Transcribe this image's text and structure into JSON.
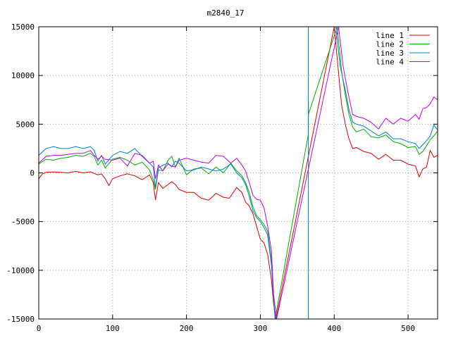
{
  "chart_data": {
    "type": "line",
    "title": "m2840_17",
    "xlabel": "",
    "ylabel": "",
    "xlim": [
      0,
      540
    ],
    "ylim": [
      -15000,
      15000
    ],
    "x_ticks": [
      0,
      100,
      200,
      300,
      400,
      500
    ],
    "y_ticks": [
      -15000,
      -10000,
      -5000,
      0,
      5000,
      10000,
      15000
    ],
    "x_tick_labels": [
      "0",
      "100",
      "200",
      "300",
      "400",
      "500"
    ],
    "y_tick_labels": [
      "-15000",
      "-10000",
      "-5000",
      "0",
      "5000",
      "10000",
      "15000"
    ],
    "grid": true,
    "legend_position": "top-right",
    "series": [
      {
        "name": "line 1",
        "color": "#e00000",
        "points": [
          [
            0,
            -600
          ],
          [
            5,
            -100
          ],
          [
            10,
            50
          ],
          [
            20,
            100
          ],
          [
            30,
            50
          ],
          [
            40,
            0
          ],
          [
            50,
            150
          ],
          [
            60,
            0
          ],
          [
            70,
            100
          ],
          [
            80,
            -200
          ],
          [
            85,
            -100
          ],
          [
            90,
            -600
          ],
          [
            95,
            -1300
          ],
          [
            100,
            -600
          ],
          [
            110,
            -300
          ],
          [
            120,
            -100
          ],
          [
            130,
            -300
          ],
          [
            140,
            -700
          ],
          [
            150,
            -200
          ],
          [
            155,
            -1000
          ],
          [
            158,
            -2800
          ],
          [
            162,
            -1000
          ],
          [
            168,
            -1600
          ],
          [
            175,
            -1200
          ],
          [
            180,
            -900
          ],
          [
            185,
            -1200
          ],
          [
            190,
            -1700
          ],
          [
            200,
            -2000
          ],
          [
            210,
            -2000
          ],
          [
            220,
            -2600
          ],
          [
            230,
            -2800
          ],
          [
            240,
            -2100
          ],
          [
            250,
            -2500
          ],
          [
            258,
            -2600
          ],
          [
            268,
            -1500
          ],
          [
            275,
            -2000
          ],
          [
            280,
            -3000
          ],
          [
            285,
            -3400
          ],
          [
            290,
            -4200
          ],
          [
            295,
            -5500
          ],
          [
            300,
            -6800
          ],
          [
            305,
            -7200
          ],
          [
            310,
            -8400
          ],
          [
            315,
            -11000
          ],
          [
            318,
            -13500
          ],
          [
            321,
            -15000
          ],
          [
            400,
            15000
          ],
          [
            405,
            11000
          ],
          [
            410,
            7000
          ],
          [
            415,
            5000
          ],
          [
            420,
            3500
          ],
          [
            425,
            2500
          ],
          [
            430,
            2600
          ],
          [
            440,
            2200
          ],
          [
            450,
            2000
          ],
          [
            460,
            1400
          ],
          [
            470,
            1900
          ],
          [
            480,
            1300
          ],
          [
            490,
            1300
          ],
          [
            500,
            900
          ],
          [
            510,
            700
          ],
          [
            515,
            -400
          ],
          [
            520,
            400
          ],
          [
            525,
            600
          ],
          [
            530,
            2300
          ],
          [
            535,
            1600
          ],
          [
            540,
            1800
          ]
        ]
      },
      {
        "name": "line 2",
        "color": "#00b000",
        "points": [
          [
            0,
            900
          ],
          [
            10,
            1400
          ],
          [
            20,
            1300
          ],
          [
            30,
            1500
          ],
          [
            40,
            1600
          ],
          [
            50,
            1800
          ],
          [
            60,
            1700
          ],
          [
            70,
            2000
          ],
          [
            75,
            1700
          ],
          [
            80,
            800
          ],
          [
            85,
            1300
          ],
          [
            90,
            500
          ],
          [
            100,
            1400
          ],
          [
            110,
            1600
          ],
          [
            120,
            1300
          ],
          [
            130,
            800
          ],
          [
            140,
            1100
          ],
          [
            150,
            300
          ],
          [
            155,
            -700
          ],
          [
            158,
            -1700
          ],
          [
            162,
            300
          ],
          [
            168,
            200
          ],
          [
            175,
            1300
          ],
          [
            180,
            1700
          ],
          [
            185,
            600
          ],
          [
            190,
            1500
          ],
          [
            200,
            -200
          ],
          [
            210,
            400
          ],
          [
            220,
            500
          ],
          [
            230,
            -100
          ],
          [
            240,
            600
          ],
          [
            250,
            0
          ],
          [
            260,
            1000
          ],
          [
            268,
            200
          ],
          [
            275,
            -300
          ],
          [
            280,
            -1000
          ],
          [
            285,
            -2000
          ],
          [
            290,
            -3500
          ],
          [
            295,
            -4400
          ],
          [
            300,
            -4800
          ],
          [
            305,
            -5300
          ],
          [
            310,
            -6000
          ],
          [
            315,
            -9000
          ],
          [
            318,
            -13000
          ],
          [
            320,
            -15000
          ],
          [
            365,
            4000
          ],
          [
            365,
            7300
          ],
          [
            365,
            6000
          ],
          [
            404,
            15000
          ],
          [
            410,
            10500
          ],
          [
            415,
            8000
          ],
          [
            420,
            6000
          ],
          [
            425,
            4700
          ],
          [
            430,
            4200
          ],
          [
            440,
            4500
          ],
          [
            450,
            3700
          ],
          [
            460,
            3600
          ],
          [
            470,
            3900
          ],
          [
            480,
            3200
          ],
          [
            490,
            3000
          ],
          [
            500,
            2600
          ],
          [
            510,
            2700
          ],
          [
            515,
            1900
          ],
          [
            520,
            2200
          ],
          [
            525,
            2800
          ],
          [
            530,
            3400
          ],
          [
            535,
            3800
          ],
          [
            540,
            4300
          ]
        ]
      },
      {
        "name": "line 3",
        "color": "#0080c0",
        "points": [
          [
            0,
            1800
          ],
          [
            10,
            2500
          ],
          [
            20,
            2700
          ],
          [
            30,
            2500
          ],
          [
            40,
            2500
          ],
          [
            50,
            2700
          ],
          [
            60,
            2500
          ],
          [
            70,
            2700
          ],
          [
            75,
            2300
          ],
          [
            80,
            1200
          ],
          [
            85,
            1800
          ],
          [
            90,
            900
          ],
          [
            100,
            1800
          ],
          [
            110,
            2200
          ],
          [
            120,
            2000
          ],
          [
            130,
            2500
          ],
          [
            140,
            1700
          ],
          [
            150,
            1000
          ],
          [
            155,
            600
          ],
          [
            158,
            -1500
          ],
          [
            162,
            500
          ],
          [
            168,
            800
          ],
          [
            175,
            1000
          ],
          [
            180,
            600
          ],
          [
            185,
            1200
          ],
          [
            190,
            1000
          ],
          [
            200,
            200
          ],
          [
            210,
            300
          ],
          [
            220,
            600
          ],
          [
            230,
            400
          ],
          [
            240,
            200
          ],
          [
            250,
            400
          ],
          [
            260,
            900
          ],
          [
            268,
            0
          ],
          [
            275,
            -500
          ],
          [
            280,
            -1200
          ],
          [
            285,
            -2400
          ],
          [
            290,
            -3900
          ],
          [
            295,
            -4600
          ],
          [
            300,
            -5000
          ],
          [
            305,
            -5600
          ],
          [
            310,
            -6400
          ],
          [
            315,
            -9500
          ],
          [
            318,
            -13000
          ],
          [
            320,
            -15000
          ],
          [
            365,
            -15000
          ],
          [
            365,
            15000
          ],
          [
            402,
            15000
          ],
          [
            408,
            11000
          ],
          [
            415,
            8500
          ],
          [
            420,
            6500
          ],
          [
            425,
            5200
          ],
          [
            430,
            5000
          ],
          [
            440,
            4800
          ],
          [
            450,
            4300
          ],
          [
            460,
            3800
          ],
          [
            470,
            4200
          ],
          [
            480,
            3500
          ],
          [
            490,
            3500
          ],
          [
            500,
            3200
          ],
          [
            510,
            3000
          ],
          [
            515,
            2500
          ],
          [
            520,
            2900
          ],
          [
            525,
            3300
          ],
          [
            530,
            3800
          ],
          [
            535,
            4900
          ],
          [
            540,
            4400
          ]
        ]
      },
      {
        "name": "line 4",
        "color": "#c000ff",
        "points": [
          [
            0,
            1000
          ],
          [
            10,
            1700
          ],
          [
            20,
            1800
          ],
          [
            30,
            1800
          ],
          [
            40,
            1900
          ],
          [
            50,
            2000
          ],
          [
            60,
            2000
          ],
          [
            70,
            2300
          ],
          [
            75,
            1800
          ],
          [
            80,
            1400
          ],
          [
            85,
            1700
          ],
          [
            90,
            1400
          ],
          [
            100,
            1300
          ],
          [
            110,
            1500
          ],
          [
            120,
            700
          ],
          [
            130,
            2000
          ],
          [
            140,
            1800
          ],
          [
            150,
            1000
          ],
          [
            155,
            1200
          ],
          [
            158,
            -600
          ],
          [
            162,
            800
          ],
          [
            168,
            200
          ],
          [
            175,
            900
          ],
          [
            180,
            700
          ],
          [
            185,
            600
          ],
          [
            190,
            1300
          ],
          [
            200,
            1500
          ],
          [
            210,
            1300
          ],
          [
            220,
            1100
          ],
          [
            230,
            1000
          ],
          [
            240,
            1800
          ],
          [
            250,
            1700
          ],
          [
            260,
            1000
          ],
          [
            268,
            1500
          ],
          [
            275,
            800
          ],
          [
            280,
            200
          ],
          [
            285,
            -1000
          ],
          [
            290,
            -2300
          ],
          [
            295,
            -2700
          ],
          [
            300,
            -2800
          ],
          [
            305,
            -3600
          ],
          [
            310,
            -5500
          ],
          [
            315,
            -8000
          ],
          [
            318,
            -12500
          ],
          [
            322,
            -15000
          ],
          [
            406,
            15000
          ],
          [
            412,
            11000
          ],
          [
            418,
            8500
          ],
          [
            425,
            6000
          ],
          [
            430,
            5800
          ],
          [
            440,
            5600
          ],
          [
            450,
            5200
          ],
          [
            460,
            4500
          ],
          [
            470,
            5600
          ],
          [
            480,
            5000
          ],
          [
            490,
            5600
          ],
          [
            500,
            5300
          ],
          [
            510,
            6000
          ],
          [
            515,
            5500
          ],
          [
            520,
            6600
          ],
          [
            525,
            6700
          ],
          [
            530,
            7100
          ],
          [
            535,
            7800
          ],
          [
            540,
            7500
          ]
        ]
      }
    ]
  }
}
